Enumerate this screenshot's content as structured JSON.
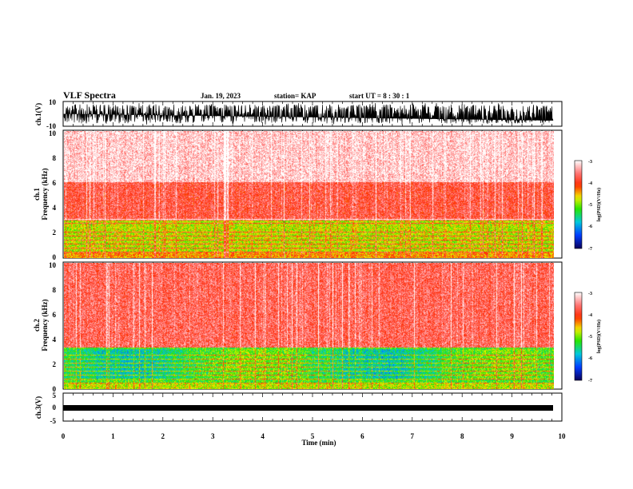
{
  "header": {
    "title": "VLF Spectra",
    "date": "Jan. 19, 2023",
    "station": "station= KAP",
    "start": "start  UT =   8  : 30 : 1"
  },
  "chart_data": [
    {
      "type": "line",
      "title": "",
      "xlabel": "",
      "ylabel": "ch.1(V)",
      "ylim": [
        -10,
        10
      ],
      "yticks": [
        "10",
        "-10"
      ],
      "xlim": [
        0,
        10
      ],
      "description_values": {
        "signal_level_v": [
          -8,
          8
        ]
      }
    },
    {
      "type": "heatmap",
      "ylabel": "ch.1\nFrequency  (kHz)",
      "ylabel_lines": [
        "ch.1",
        "Frequency  (kHz)"
      ],
      "ylim": [
        0,
        10
      ],
      "yticks": [
        "0",
        "2",
        "4",
        "6",
        "8",
        "10"
      ],
      "xlim": [
        0,
        9.8
      ],
      "colorbar": {
        "label": "log(PSD)(V²/Hz)",
        "ticks": [
          "-3",
          "-4",
          "-5",
          "-6",
          "-7"
        ],
        "range": [
          -7,
          -3
        ]
      },
      "bands": [
        {
          "from_khz": 0,
          "to_khz": 3.0,
          "level": -4.8
        },
        {
          "from_khz": 3.0,
          "to_khz": 6.0,
          "level": -3.8
        },
        {
          "from_khz": 6.0,
          "to_khz": 10,
          "level": -3.2
        }
      ]
    },
    {
      "type": "heatmap",
      "ylabel_lines": [
        "ch.2",
        "Frequency  (kHz)"
      ],
      "ylim": [
        0,
        10
      ],
      "yticks": [
        "0",
        "2",
        "4",
        "6",
        "8",
        "10"
      ],
      "xlim": [
        0,
        9.8
      ],
      "colorbar": {
        "label": "log(PSD)(V²/Hz)",
        "ticks": [
          "-3",
          "-4",
          "-5",
          "-6",
          "-7"
        ],
        "range": [
          -7,
          -3
        ]
      },
      "bands": [
        {
          "from_khz": 0,
          "to_khz": 3.3,
          "level": -5.2
        },
        {
          "from_khz": 3.3,
          "to_khz": 10,
          "level": -3.7
        }
      ]
    },
    {
      "type": "line",
      "ylabel": "ch.3(V)",
      "ylim": [
        -5,
        5
      ],
      "yticks": [
        "5",
        "0",
        "-5"
      ],
      "xlim": [
        0,
        10
      ],
      "xticks": [
        "0",
        "1",
        "2",
        "3",
        "4",
        "5",
        "6",
        "7",
        "8",
        "9",
        "10"
      ],
      "xlabel": "Time  (min)",
      "description_values": {
        "signal_level_v": [
          -1,
          1
        ]
      }
    }
  ]
}
